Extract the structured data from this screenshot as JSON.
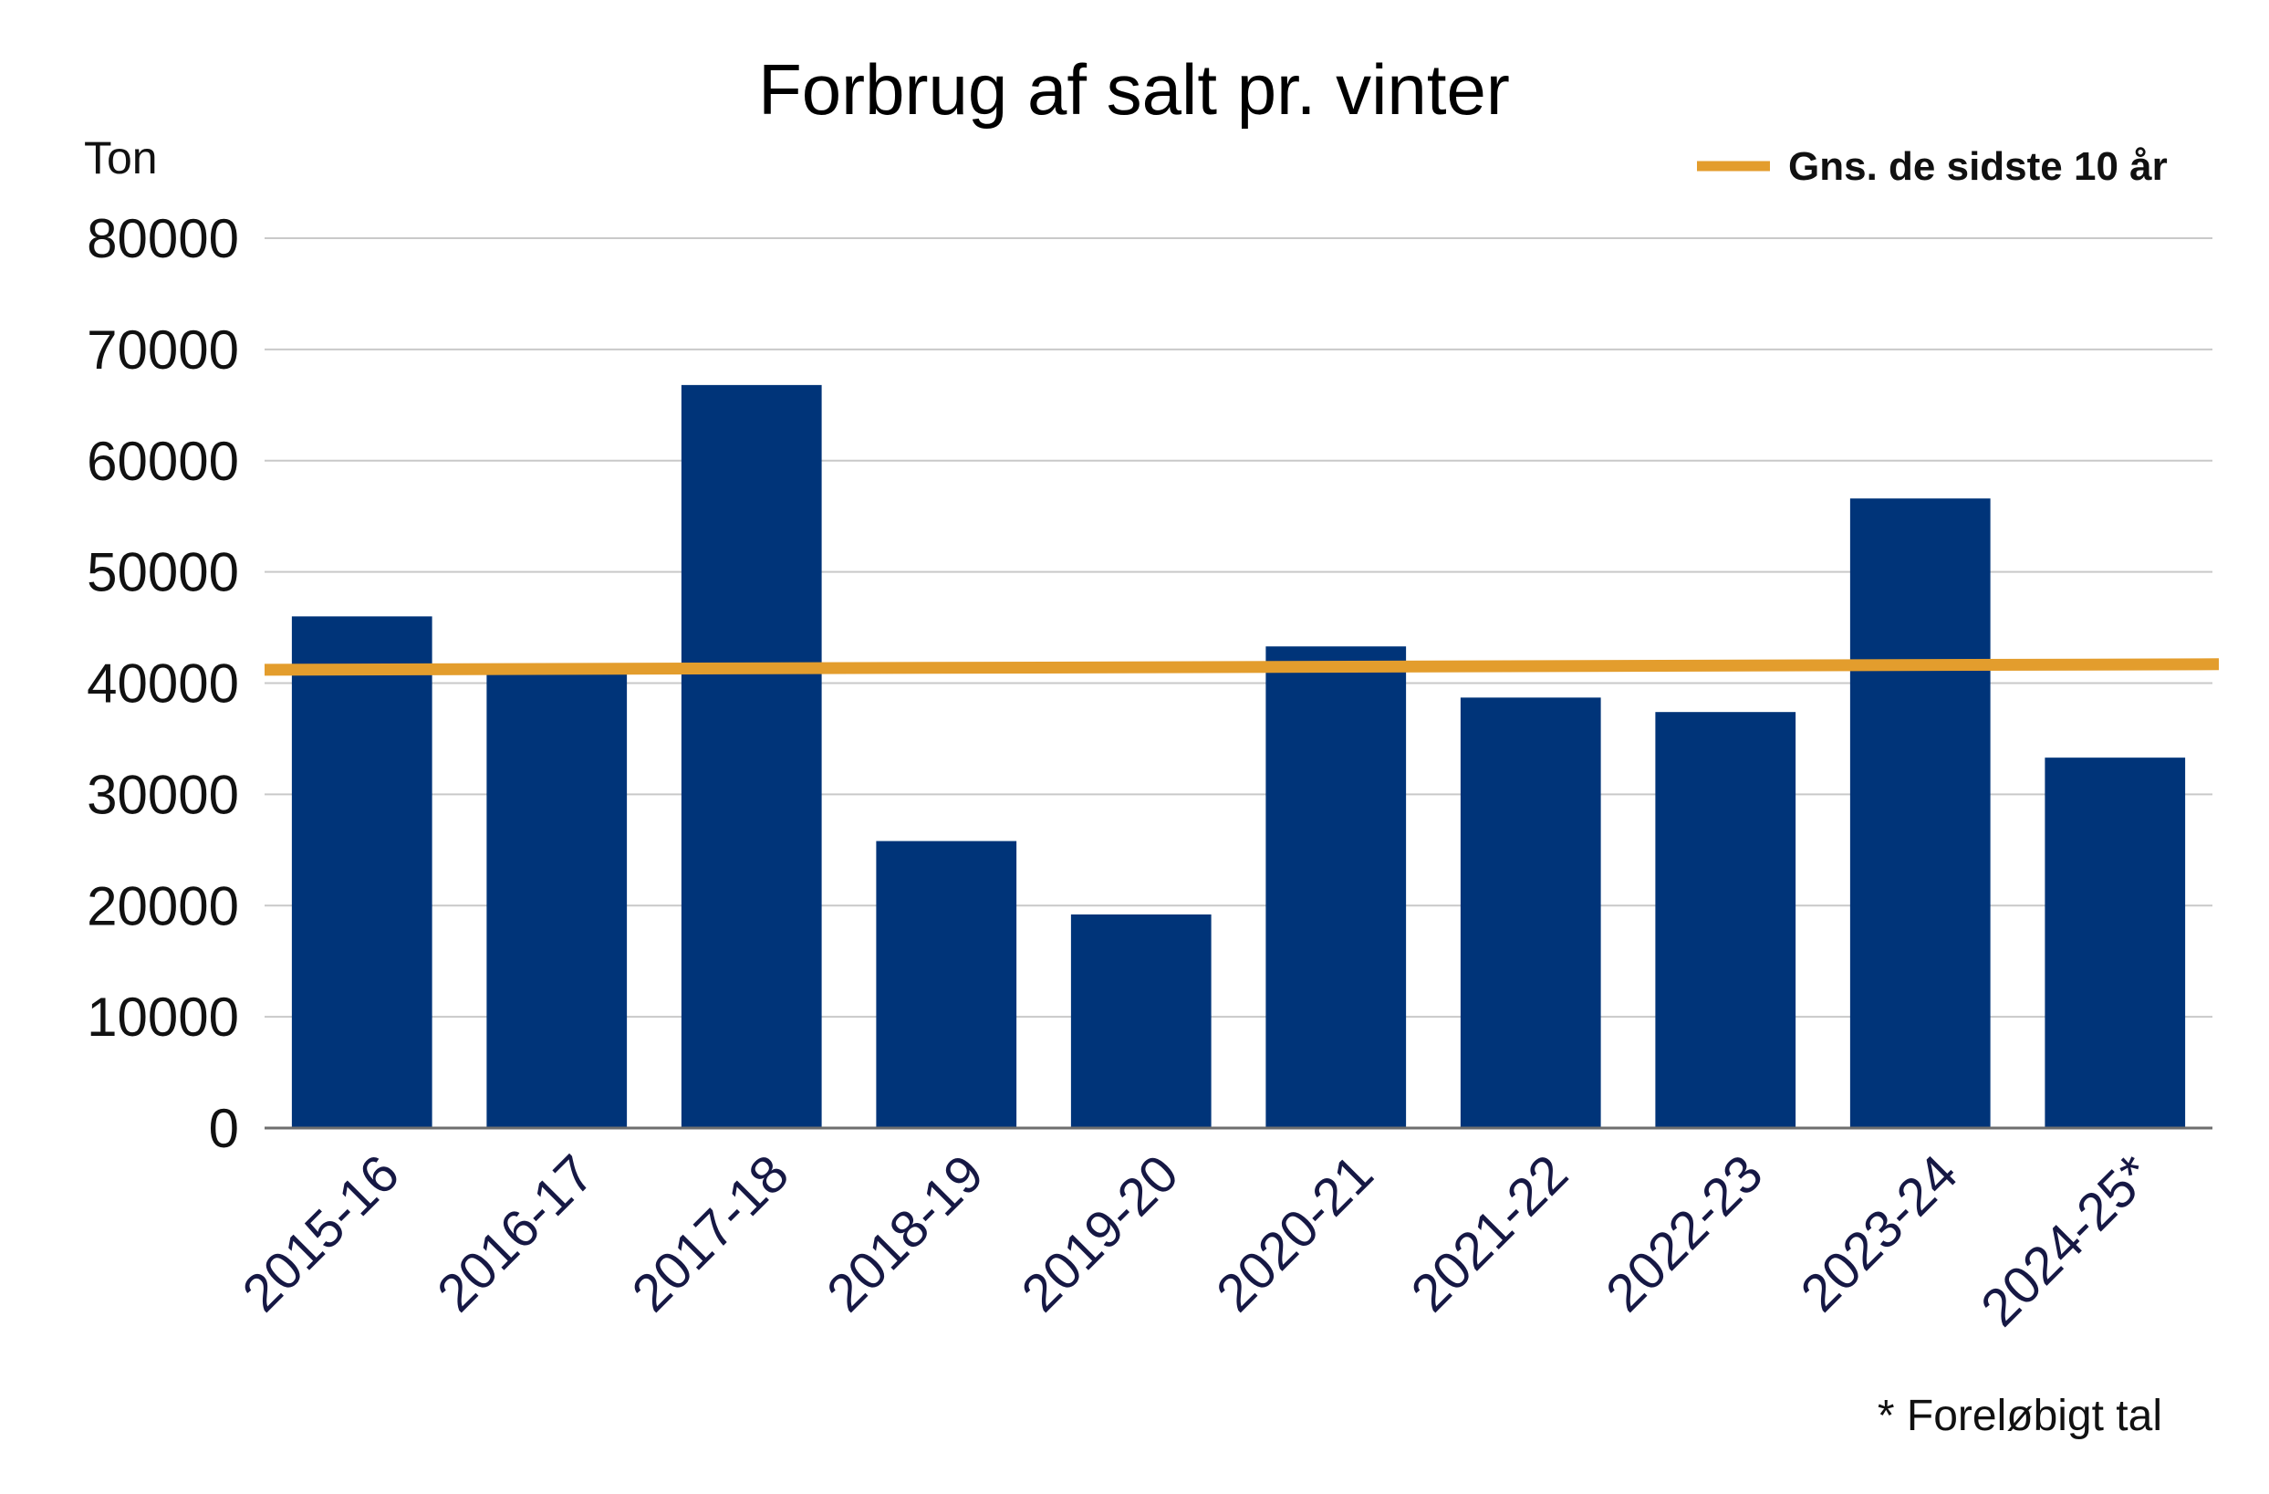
{
  "chart_data": {
    "type": "bar",
    "title": "Forbrug af salt pr. vinter",
    "ylabel": "Ton",
    "xlabel": "",
    "ylim": [
      0,
      80000
    ],
    "yticks": [
      0,
      10000,
      20000,
      30000,
      40000,
      50000,
      60000,
      70000,
      80000
    ],
    "ytick_labels": [
      "0",
      "10000",
      "20000",
      "30000",
      "40000",
      "50000",
      "60000",
      "70000",
      "80000"
    ],
    "categories": [
      "2015-16",
      "2016-17",
      "2017-18",
      "2018-19",
      "2019-20",
      "2020-21",
      "2021-22",
      "2022-23",
      "2023-24",
      "2024-25*"
    ],
    "values": [
      46000,
      41000,
      66800,
      25800,
      19200,
      43300,
      38700,
      37400,
      56600,
      33300
    ],
    "bar_color": "#003479",
    "average_line": {
      "name": "Gns. de sidste 10 år",
      "color": "#E39D2D",
      "start": 41200,
      "end": 41700
    },
    "grid": true,
    "legend_placement": "top-right",
    "footnote": "* Foreløbigt tal"
  }
}
